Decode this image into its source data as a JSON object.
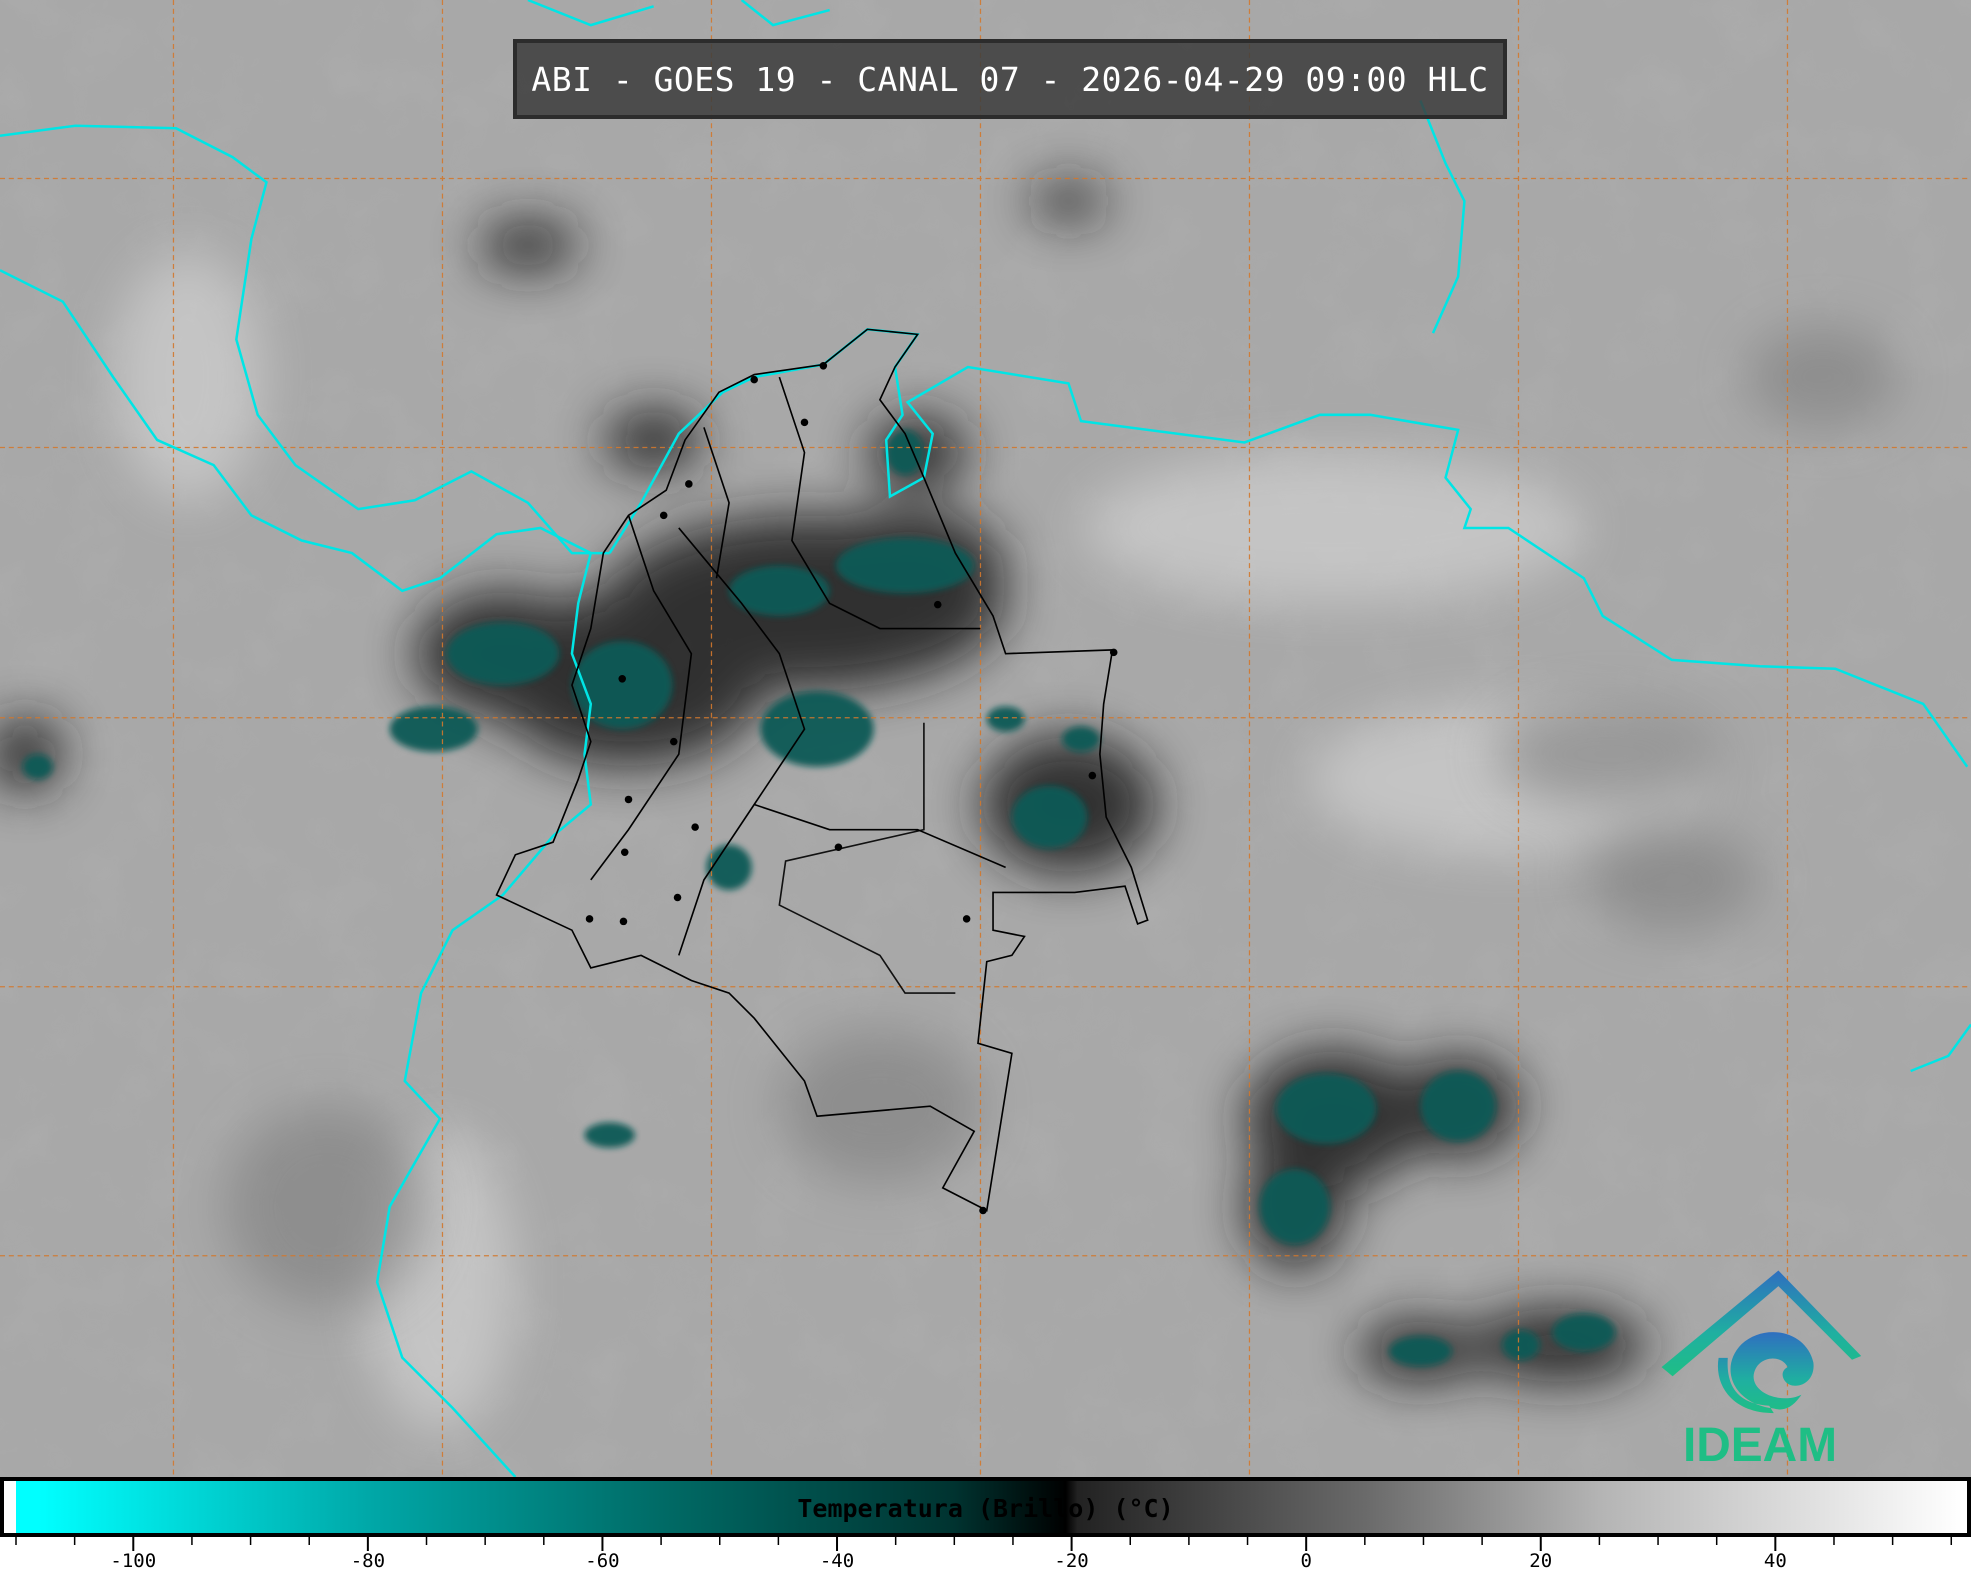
{
  "title": "ABI - GOES 19 - CANAL 07 - 2026-04-29 09:00 HLC",
  "logo_text": "IDEAM",
  "colorbar": {
    "label": "Temperatura (Brillo) (°C)",
    "min": -110,
    "max": 56,
    "major_ticks": [
      -100,
      -80,
      -60,
      -40,
      -20,
      0,
      20,
      40
    ],
    "tick_labels": [
      "-100",
      "-80",
      "-60",
      "-40",
      "-20",
      "0",
      "20",
      "40"
    ],
    "minor_step": 5,
    "colors": {
      "coldest": "#00ffff",
      "mid": "#006b66",
      "threshold": "#000000",
      "warmest": "#ffffff"
    }
  },
  "map": {
    "coastline_color": "#00e5e5",
    "border_color": "#000000",
    "grid_color": "#d2782d"
  }
}
